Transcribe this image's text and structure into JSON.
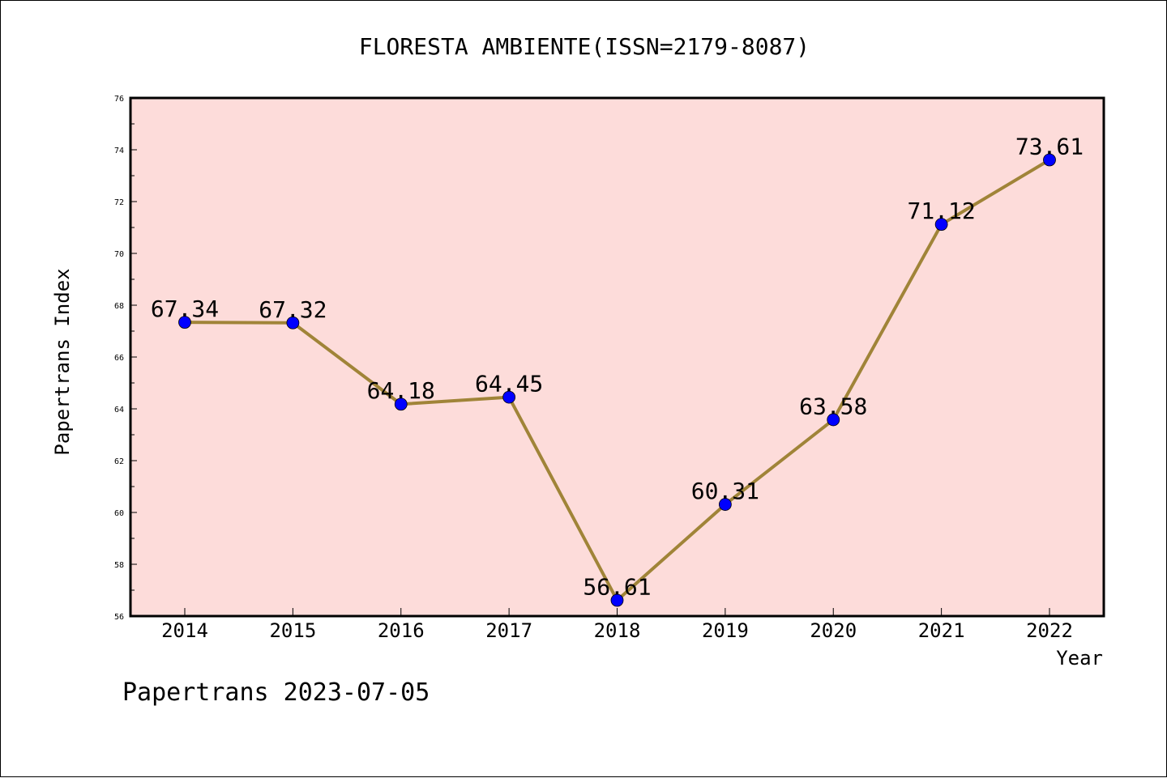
{
  "chart_data": {
    "type": "line",
    "title": "FLORESTA AMBIENTE(ISSN=2179-8087)",
    "xlabel": "Year",
    "ylabel": "Papertrans Index",
    "categories": [
      "2014",
      "2015",
      "2016",
      "2017",
      "2018",
      "2019",
      "2020",
      "2021",
      "2022"
    ],
    "values": [
      67.34,
      67.32,
      64.18,
      64.45,
      56.61,
      60.31,
      63.58,
      71.12,
      73.61
    ],
    "value_labels": [
      "67.34",
      "67.32",
      "64.18",
      "64.45",
      "56.61",
      "60.31",
      "63.58",
      "71.12",
      "73.61"
    ],
    "ylim": [
      56,
      76
    ],
    "yticks": [
      "56",
      "58",
      "60",
      "62",
      "64",
      "66",
      "68",
      "70",
      "72",
      "74",
      "76"
    ],
    "grid": false,
    "colors": {
      "plot_background": "#fddcda",
      "line": "#a08438",
      "marker": "#0000ff"
    }
  },
  "footer": "Papertrans 2023-07-05"
}
